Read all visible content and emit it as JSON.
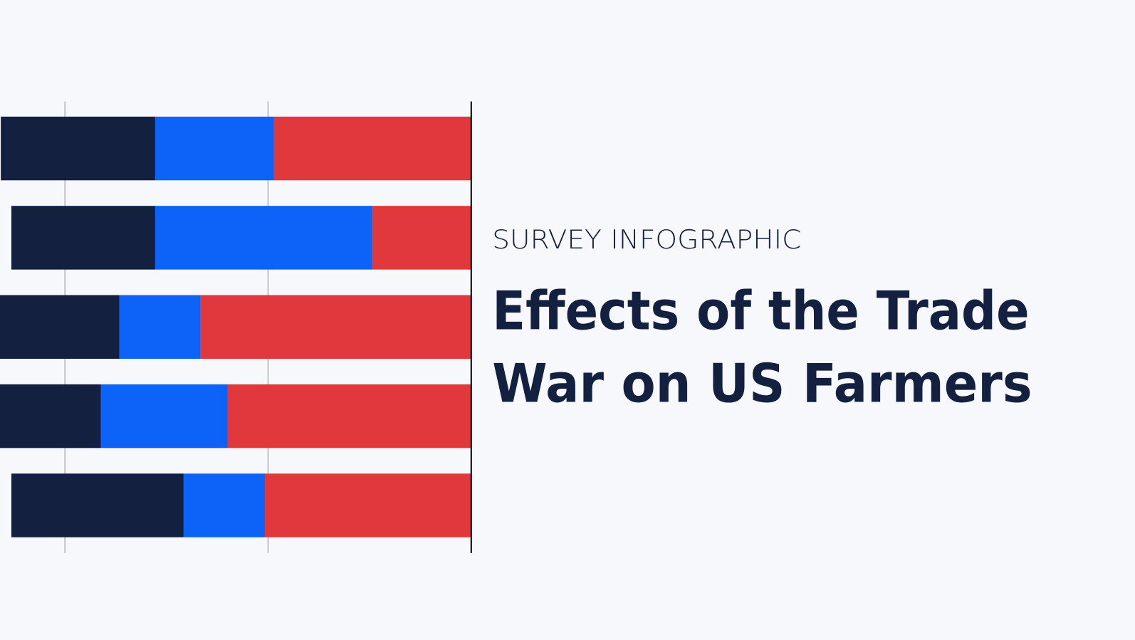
{
  "chart_data": {
    "type": "stacked-bar",
    "orientation": "horizontal",
    "direction": "right-to-left",
    "overline": "SURVEY INFOGRAPHIC",
    "title": [
      "Effects of the Trade",
      "War on US Farmers"
    ],
    "categories": [
      null,
      null,
      null,
      null,
      null
    ],
    "series": [
      {
        "color": "#e0383d",
        "values": [
          24.3,
          12.2,
          33.3,
          30.0,
          25.4
        ]
      },
      {
        "color": "#0d62f7",
        "values": [
          14.6,
          26.7,
          10.0,
          15.6,
          10.0
        ]
      },
      {
        "color": "#13203f",
        "values": [
          19.0,
          17.7,
          14.7,
          12.4,
          21.2
        ]
      }
    ],
    "xlim": [
      0,
      58
    ],
    "xticks": [
      0,
      25,
      50
    ],
    "grid": true
  }
}
